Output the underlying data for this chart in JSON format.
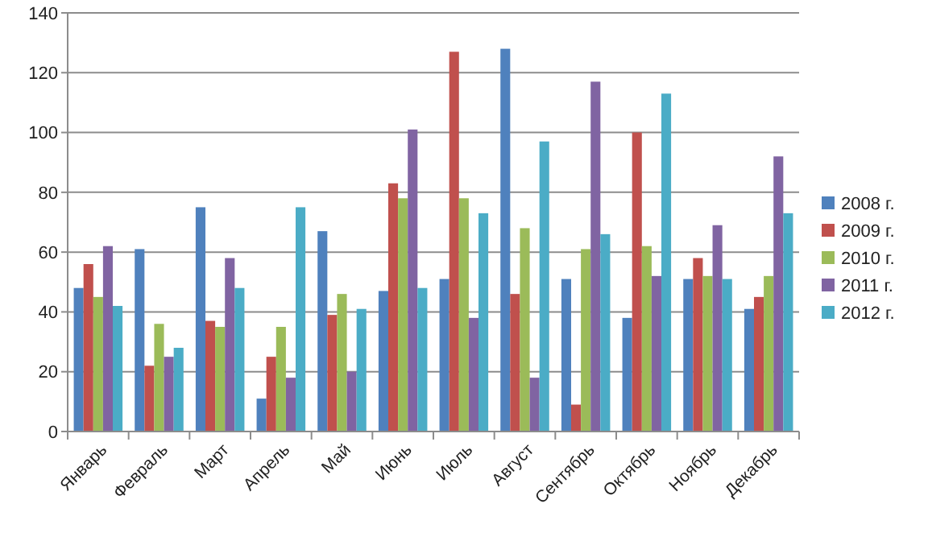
{
  "chart_data": {
    "type": "bar",
    "categories": [
      "Январь",
      "Февраль",
      "Март",
      "Апрель",
      "Май",
      "Июнь",
      "Июль",
      "Август",
      "Сентябрь",
      "Октябрь",
      "Ноябрь",
      "Декабрь"
    ],
    "series": [
      {
        "name": "2008 г.",
        "color": "#4f81bd",
        "values": [
          48,
          61,
          75,
          11,
          67,
          47,
          51,
          128,
          51,
          38,
          51,
          41
        ]
      },
      {
        "name": "2009 г.",
        "color": "#c0504d",
        "values": [
          56,
          22,
          37,
          25,
          39,
          83,
          127,
          46,
          9,
          100,
          58,
          45
        ]
      },
      {
        "name": "2010 г.",
        "color": "#9bbb59",
        "values": [
          45,
          36,
          35,
          35,
          46,
          78,
          78,
          68,
          61,
          62,
          52,
          52
        ]
      },
      {
        "name": "2011 г.",
        "color": "#8064a2",
        "values": [
          62,
          25,
          58,
          18,
          20,
          101,
          38,
          18,
          117,
          52,
          69,
          92
        ]
      },
      {
        "name": "2012 г.",
        "color": "#4bacc6",
        "values": [
          42,
          28,
          48,
          75,
          41,
          48,
          73,
          97,
          66,
          113,
          51,
          73
        ]
      }
    ],
    "ylim": [
      0,
      140
    ],
    "yticks": [
      0,
      20,
      40,
      60,
      80,
      100,
      120,
      140
    ],
    "grid": "y",
    "legend": "right"
  }
}
